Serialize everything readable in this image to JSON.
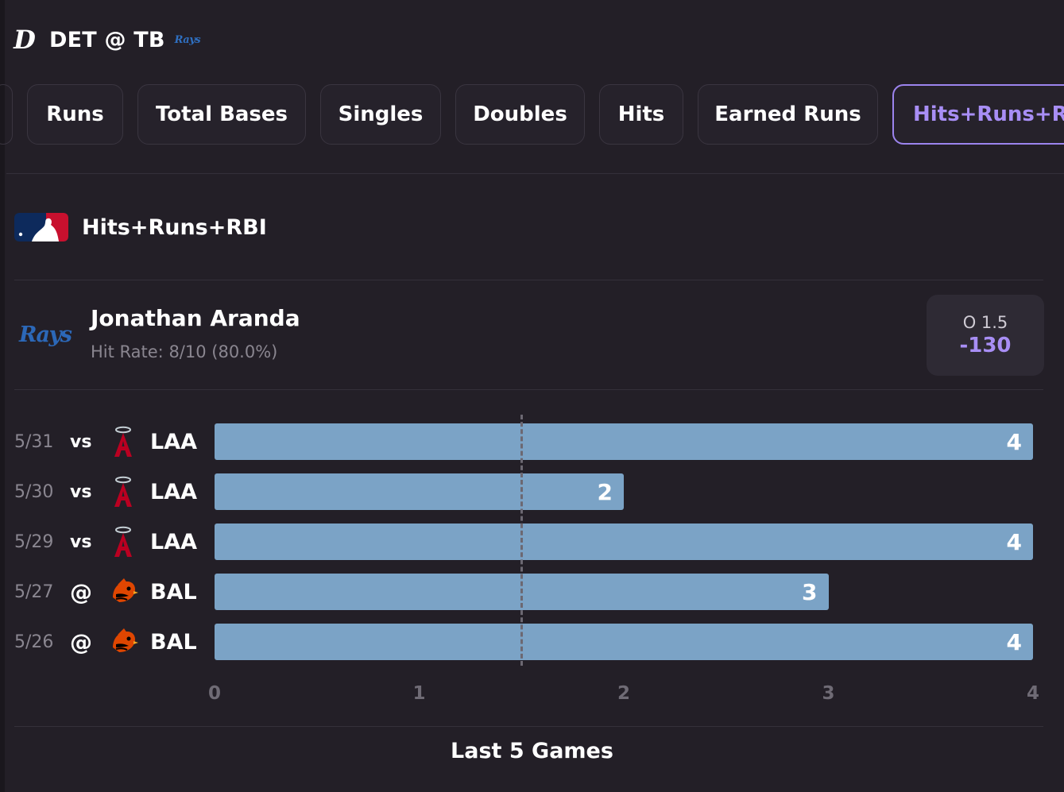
{
  "header": {
    "title": "DET @ TB",
    "away_logo_icon": "tigers-logo-icon",
    "home_logo_text": "Rays"
  },
  "tabs": [
    {
      "label": "Runs",
      "active": false
    },
    {
      "label": "Total Bases",
      "active": false
    },
    {
      "label": "Singles",
      "active": false
    },
    {
      "label": "Doubles",
      "active": false
    },
    {
      "label": "Hits",
      "active": false
    },
    {
      "label": "Earned Runs",
      "active": false
    },
    {
      "label": "Hits+Runs+RBI",
      "active": true
    }
  ],
  "market": {
    "title": "Hits+Runs+RBI",
    "league_icon": "mlb-logo-icon"
  },
  "player": {
    "name": "Jonathan Aranda",
    "team_logo_text": "Rays",
    "hit_rate": "Hit Rate: 8/10 (80.0%)",
    "line": "O 1.5",
    "price": "-130"
  },
  "colors": {
    "accent": "#a88ef5",
    "bar": "#7ba3c6",
    "background": "#231f27"
  },
  "chart_data": {
    "type": "bar",
    "orientation": "horizontal",
    "title": "Last 5 Games",
    "categories": [
      "5/31 vs LAA",
      "5/30 vs LAA",
      "5/29 vs LAA",
      "5/27 @ BAL",
      "5/26 @ BAL"
    ],
    "values": [
      4,
      2,
      4,
      3,
      4
    ],
    "xlim": [
      0,
      4
    ],
    "x_ticks": [
      "0",
      "1",
      "2",
      "3",
      "4"
    ],
    "threshold": 1.5,
    "games": [
      {
        "date": "5/31",
        "venue": "vs",
        "opponent": "LAA",
        "team_icon": "angels-logo-icon",
        "value": 4
      },
      {
        "date": "5/30",
        "venue": "vs",
        "opponent": "LAA",
        "team_icon": "angels-logo-icon",
        "value": 2
      },
      {
        "date": "5/29",
        "venue": "vs",
        "opponent": "LAA",
        "team_icon": "angels-logo-icon",
        "value": 4
      },
      {
        "date": "5/27",
        "venue": "@",
        "opponent": "BAL",
        "team_icon": "orioles-logo-icon",
        "value": 3
      },
      {
        "date": "5/26",
        "venue": "@",
        "opponent": "BAL",
        "team_icon": "orioles-logo-icon",
        "value": 4
      }
    ]
  },
  "footer": {
    "label": "Last 5 Games"
  }
}
